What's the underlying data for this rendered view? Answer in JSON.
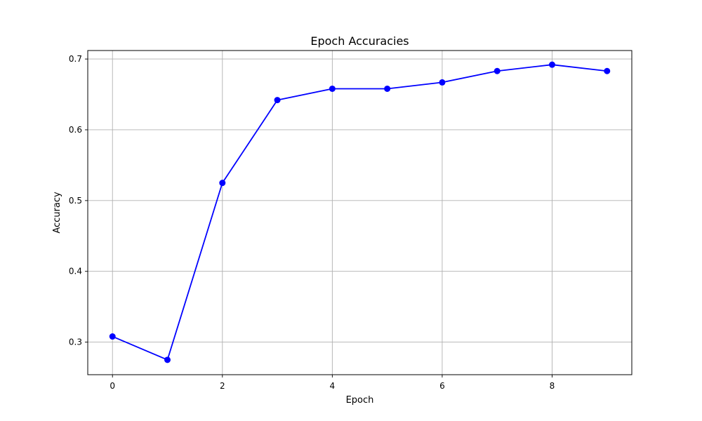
{
  "chart_data": {
    "type": "line",
    "title": "Epoch Accuracies",
    "xlabel": "Epoch",
    "ylabel": "Accuracy",
    "x": [
      0,
      1,
      2,
      3,
      4,
      5,
      6,
      7,
      8,
      9
    ],
    "series": [
      {
        "values": [
          0.308,
          0.275,
          0.525,
          0.642,
          0.658,
          0.658,
          0.667,
          0.683,
          0.692,
          0.683
        ],
        "color": "#0000ff",
        "marker": "circle"
      }
    ],
    "xlim": [
      -0.45,
      9.45
    ],
    "ylim": [
      0.254,
      0.712
    ],
    "xticks": [
      "0",
      "2",
      "4",
      "6",
      "8"
    ],
    "yticks": [
      "0.3",
      "0.4",
      "0.5",
      "0.6",
      "0.7"
    ],
    "grid": true,
    "legend": "none"
  }
}
